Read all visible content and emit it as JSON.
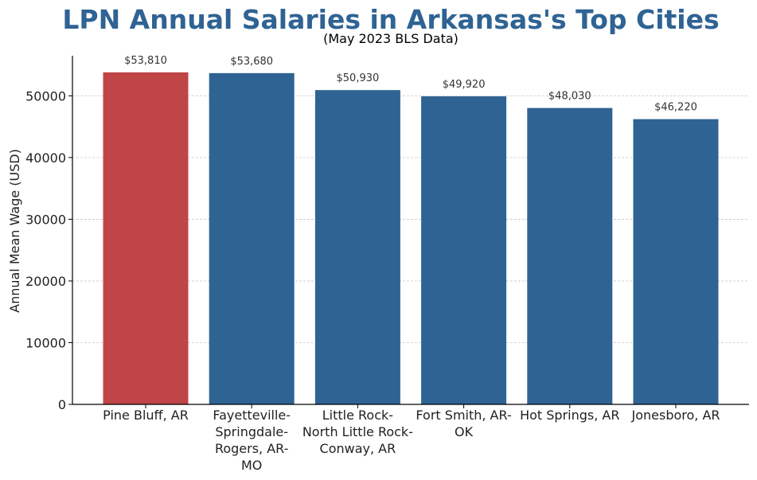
{
  "chart_data": {
    "type": "bar",
    "title": "LPN Annual Salaries in Arkansas's Top Cities",
    "subtitle": "(May 2023 BLS Data)",
    "xlabel": "",
    "ylabel": "Annual Mean Wage (USD)",
    "ylim": [
      0,
      56500
    ],
    "yticks": [
      0,
      10000,
      20000,
      30000,
      40000,
      50000
    ],
    "ytick_labels": [
      "0",
      "10000",
      "20000",
      "30000",
      "40000",
      "50000"
    ],
    "grid": "horizontal dashed",
    "categories": [
      [
        "Pine Bluff, AR"
      ],
      [
        "Fayetteville-",
        "Springdale-",
        "Rogers, AR-",
        "MO"
      ],
      [
        "Little Rock-",
        "North Little Rock-",
        "Conway, AR"
      ],
      [
        "Fort Smith, AR-",
        "OK"
      ],
      [
        "Hot Springs, AR"
      ],
      [
        "Jonesboro, AR"
      ]
    ],
    "values": [
      53810,
      53680,
      50930,
      49920,
      48030,
      46220
    ],
    "value_labels": [
      "$53,810",
      "$53,680",
      "$50,930",
      "$49,920",
      "$48,030",
      "$46,220"
    ],
    "highlight_index": 0,
    "colors": {
      "bar": "#2f6393",
      "highlight": "#c04547",
      "title": "#2f6393",
      "axis": "#000000",
      "grid": "#c8c8c8",
      "text": "#222222",
      "value_text": "#333333"
    }
  }
}
